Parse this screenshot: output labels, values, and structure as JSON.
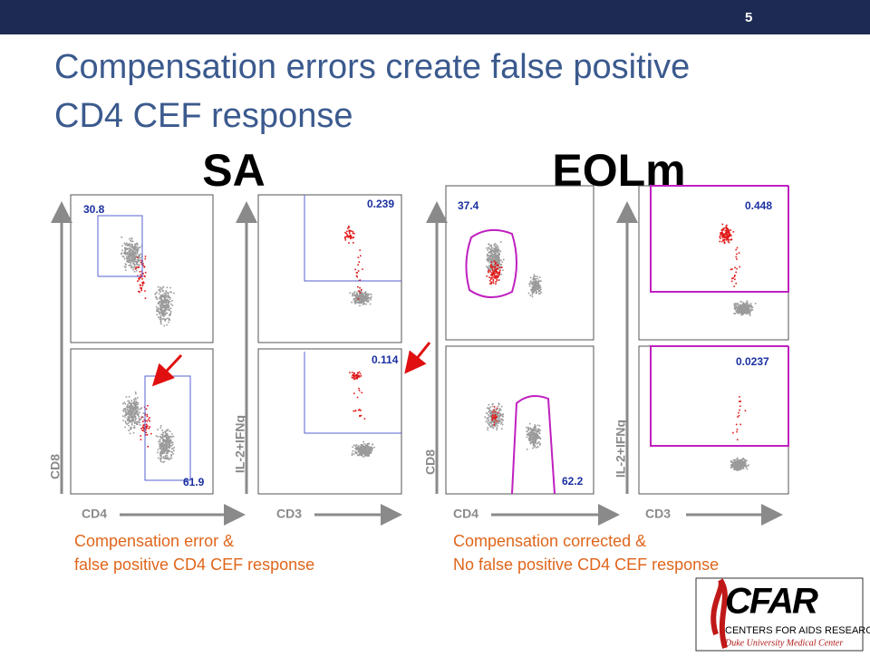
{
  "header": {
    "slide_number": "5"
  },
  "title": {
    "line1": "Compensation errors create false positive",
    "line2": "CD4 CEF response"
  },
  "groups": [
    {
      "label": "SA",
      "plots": [
        {
          "gate": "30.8"
        },
        {
          "gate": "61.9"
        },
        {
          "gate": "0.239"
        },
        {
          "gate": "0.114"
        }
      ],
      "axes": {
        "y1": "CD8",
        "x1": "CD4",
        "y2": "IL-2+IFNg",
        "x2": "CD3"
      },
      "caption": {
        "line1": "Compensation error &",
        "line2": "false positive CD4 CEF response"
      }
    },
    {
      "label": "EOLm",
      "plots": [
        {
          "gate": "37.4"
        },
        {
          "gate": "62.2"
        },
        {
          "gate": "0.448"
        },
        {
          "gate": "0.0237"
        }
      ],
      "axes": {
        "y1": "CD8",
        "x1": "CD4",
        "y2": "IL-2+IFNg",
        "x2": "CD3"
      },
      "caption": {
        "line1": "Compensation corrected &",
        "line2": "No false positive CD4 CEF response"
      }
    }
  ],
  "logo": {
    "name": "CFAR",
    "line1": "CENTERS FOR AIDS RESEARCH",
    "line2": "Duke University Medical Center"
  }
}
